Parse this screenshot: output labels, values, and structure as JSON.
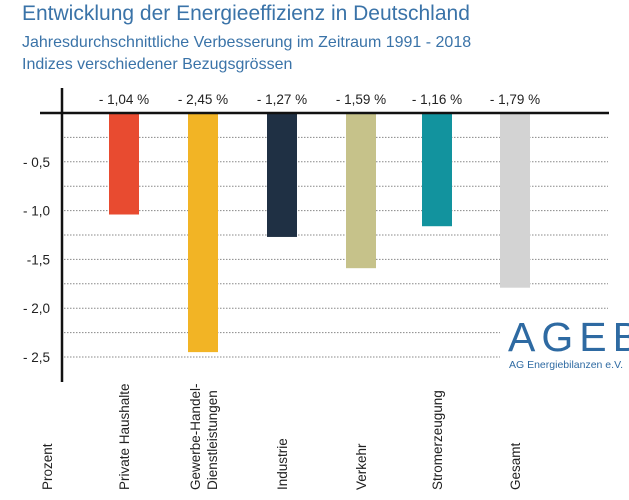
{
  "chart_data": {
    "type": "bar",
    "title": "Entwicklung der Energieeffizienz in Deutschland",
    "subtitle": [
      "Jahresdurchschnittliche Verbesserung im Zeitraum 1991 - 2018",
      "Indizes verschiedener Bezugsgrössen"
    ],
    "ylabel": "Prozent",
    "categories": [
      "Private Haushalte",
      "Gewerbe-Handel-Dienstleistungen",
      "Industrie",
      "Verkehr",
      "Stromerzeugung",
      "Gesamt"
    ],
    "values": [
      -1.04,
      -2.45,
      -1.27,
      -1.59,
      -1.16,
      -1.79
    ],
    "data_labels": [
      "- 1,04 %",
      "- 2,45 %",
      "- 1,27 %",
      "- 1,59 %",
      "- 1,16 %",
      "- 1,79 %"
    ],
    "colors": [
      "#e84b30",
      "#f2b425",
      "#1f3044",
      "#c6c28a",
      "#12939e",
      "#d3d3d3"
    ],
    "ylim": [
      -2.75,
      0
    ],
    "yticks": [
      -0.5,
      -1.0,
      -1.5,
      -2.0,
      -2.5
    ],
    "ytick_labels": [
      "- 0,5",
      "- 1,0",
      "-1,5",
      "- 2,0",
      "- 2,5"
    ],
    "grid": "dotted horizontal every 0.25"
  },
  "logo": {
    "main": "AGEB",
    "sub": "AG Energiebilanzen e.V."
  }
}
